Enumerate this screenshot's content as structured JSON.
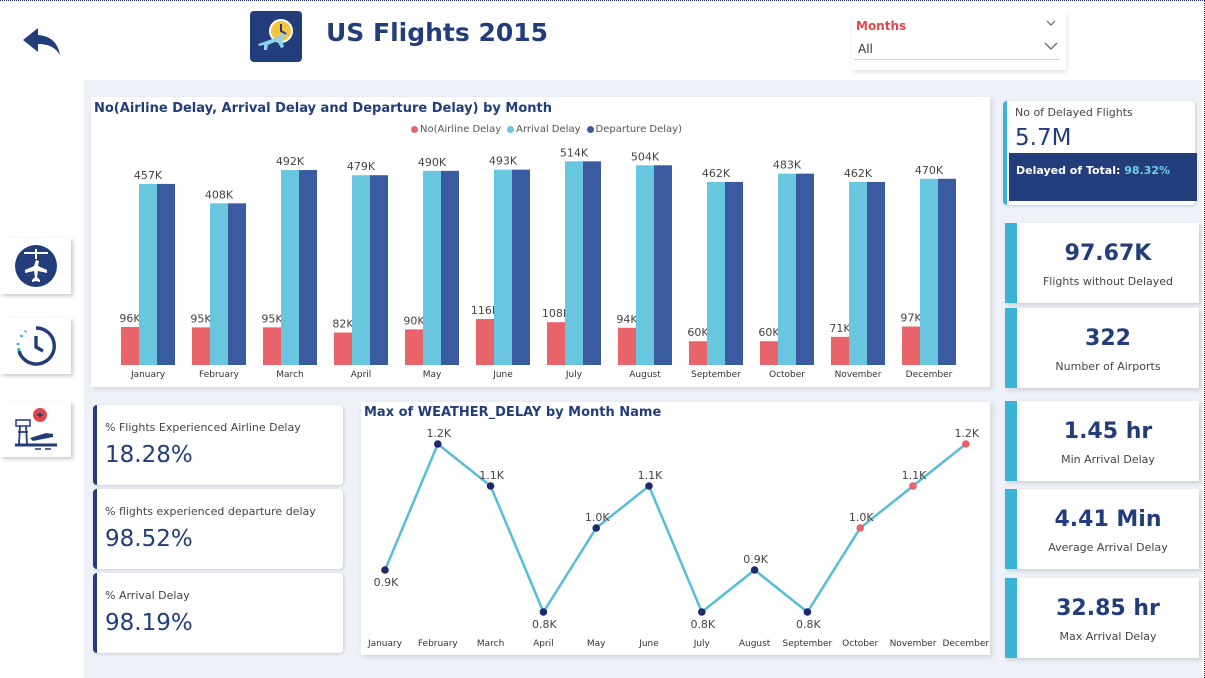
{
  "header": {
    "title": "US Flights 2015"
  },
  "filter": {
    "label": "Months",
    "value": "All"
  },
  "colors": {
    "primary": "#233c7a",
    "accent": "#3ab4d6",
    "airline": "#e9636b",
    "arrival": "#68c6df",
    "departure": "#3b5ba0",
    "line": "#56bed8",
    "point_dark": "#1f2a6b",
    "point_red": "#e9636b"
  },
  "nav": {
    "icons": [
      "back-arrow-icon",
      "airplane-schedule-icon",
      "history-clock-icon",
      "airport-tower-icon"
    ]
  },
  "bar_chart": {
    "title": "No(Airline Delay, Arrival Delay and Departure Delay) by Month"
  },
  "line_chart": {
    "title": "Max of WEATHER_DELAY by Month Name"
  },
  "kpis_left": [
    {
      "label": "% Flights Experienced Airline Delay",
      "value": "18.28%"
    },
    {
      "label": "% flights experienced departure delay",
      "value": "98.52%"
    },
    {
      "label": "% Arrival Delay",
      "value": "98.19%"
    }
  ],
  "delayed_card": {
    "label": "No of Delayed Flights",
    "value": "5.7M",
    "sub_label": "Delayed of Total:",
    "sub_value": "98.32%"
  },
  "kpis_right": [
    {
      "value": "97.67K",
      "label": "Flights without Delayed"
    },
    {
      "value": "322",
      "label": "Number of Airports"
    },
    {
      "value": "1.45 hr",
      "label": "Min Arrival Delay"
    },
    {
      "value": "4.41 Min",
      "label": "Average Arrival Delay"
    },
    {
      "value": "32.85 hr",
      "label": "Max Arrival Delay"
    }
  ],
  "chart_data": [
    {
      "type": "bar",
      "title": "No(Airline Delay, Arrival Delay and Departure Delay) by Month",
      "categories": [
        "January",
        "February",
        "March",
        "April",
        "May",
        "June",
        "July",
        "August",
        "September",
        "October",
        "November",
        "December"
      ],
      "series": [
        {
          "name": "No(Airline Delay",
          "values": [
            96000,
            95000,
            95000,
            82000,
            90000,
            116000,
            108000,
            94000,
            60000,
            60000,
            71000,
            97000
          ],
          "labels": [
            "96K",
            "95K",
            "95K",
            "82K",
            "90K",
            "116K",
            "108K",
            "94K",
            "60K",
            "60K",
            "71K",
            "97K"
          ]
        },
        {
          "name": "Arrival Delay",
          "values": [
            457000,
            408000,
            492000,
            479000,
            490000,
            493000,
            514000,
            504000,
            462000,
            483000,
            462000,
            470000
          ],
          "labels": [
            "457K",
            "408K",
            "492K",
            "479K",
            "490K",
            "493K",
            "514K",
            "504K",
            "462K",
            "483K",
            "462K",
            "470K"
          ]
        },
        {
          "name": "Departure Delay)",
          "values": [
            457000,
            408000,
            492000,
            479000,
            490000,
            493000,
            514000,
            504000,
            462000,
            483000,
            462000,
            470000
          ]
        }
      ],
      "ylim": [
        0,
        530000
      ],
      "grid": false,
      "legend": "top-center"
    },
    {
      "type": "line",
      "title": "Max of WEATHER_DELAY by Month Name",
      "categories": [
        "January",
        "February",
        "March",
        "April",
        "May",
        "June",
        "July",
        "August",
        "September",
        "October",
        "November",
        "December"
      ],
      "values": [
        900,
        1200,
        1100,
        800,
        1000,
        1100,
        800,
        900,
        800,
        1000,
        1100,
        1200
      ],
      "labels": [
        "0.9K",
        "1.2K",
        "1.1K",
        "0.8K",
        "1.0K",
        "1.1K",
        "0.8K",
        "0.9K",
        "0.8K",
        "1.0K",
        "1.1K",
        "1.2K"
      ],
      "highlight": [
        false,
        false,
        false,
        false,
        false,
        false,
        false,
        false,
        false,
        true,
        true,
        true
      ],
      "grid": false
    }
  ]
}
